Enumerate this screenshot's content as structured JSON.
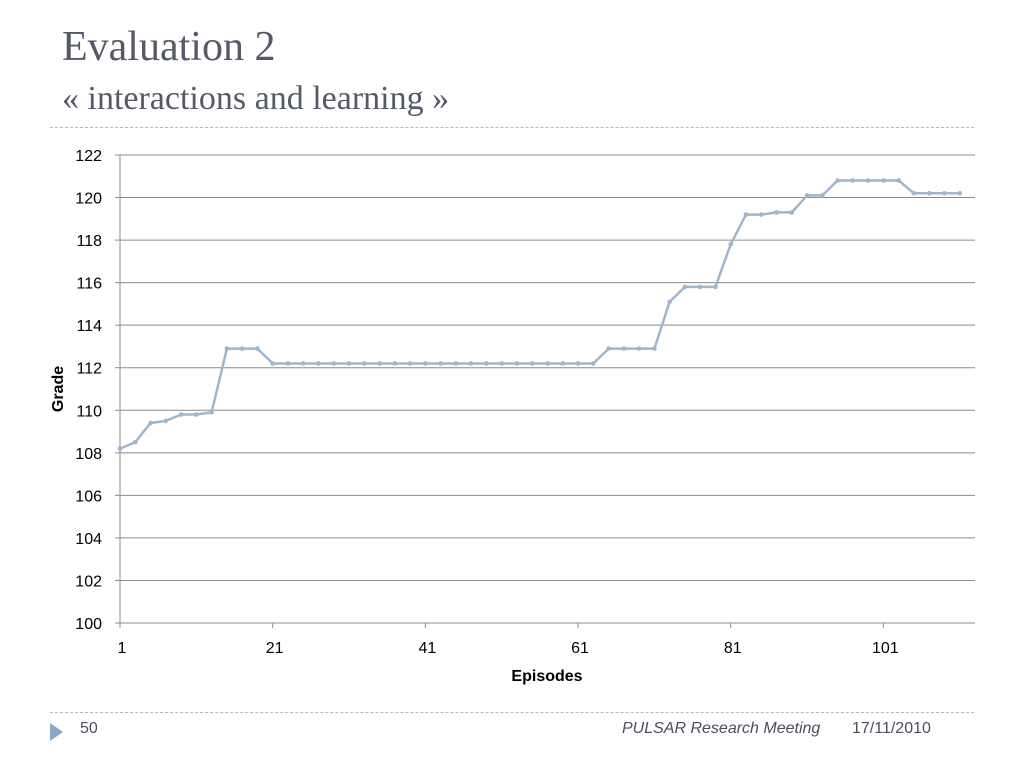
{
  "slide": {
    "title": "Evaluation 2",
    "subtitle": "« interactions and learning »"
  },
  "footer": {
    "page_number": "50",
    "meeting": "PULSAR Research Meeting",
    "date": "17/11/2010"
  },
  "colors": {
    "title": "#555a66",
    "series_line": "#9fb6cc",
    "gridline": "#8c8c8c",
    "divider": "#a9bccb",
    "nav_arrow": "#8aa9c4"
  },
  "icons": {
    "nav": "play-triangle-icon"
  },
  "chart_data": {
    "type": "line",
    "title": "",
    "xlabel": "Episodes",
    "ylabel": "Grade",
    "ylim": [
      100,
      122
    ],
    "yticks": [
      100,
      102,
      104,
      106,
      108,
      110,
      112,
      114,
      116,
      118,
      120,
      122
    ],
    "xtick_labels": [
      "1",
      "21",
      "41",
      "61",
      "81",
      "101"
    ],
    "xtick_values": [
      1,
      21,
      41,
      61,
      81,
      101
    ],
    "xlim": [
      1,
      113
    ],
    "grid": true,
    "legend": "none",
    "series": [
      {
        "x": [
          1,
          3,
          5,
          7,
          9,
          11,
          13,
          15,
          17,
          19,
          21,
          23,
          25,
          27,
          29,
          31,
          33,
          35,
          37,
          39,
          41,
          43,
          45,
          47,
          49,
          51,
          53,
          55,
          57,
          59,
          61,
          63,
          65,
          67,
          69,
          71,
          73,
          75,
          77,
          79,
          81,
          83,
          85,
          87,
          89,
          91,
          93,
          95,
          97,
          99,
          101,
          103,
          105,
          107,
          109,
          111
        ],
        "y": [
          108.2,
          108.5,
          109.4,
          109.5,
          109.8,
          109.8,
          109.9,
          112.9,
          112.9,
          112.9,
          112.2,
          112.2,
          112.2,
          112.2,
          112.2,
          112.2,
          112.2,
          112.2,
          112.2,
          112.2,
          112.2,
          112.2,
          112.2,
          112.2,
          112.2,
          112.2,
          112.2,
          112.2,
          112.2,
          112.2,
          112.2,
          112.2,
          112.9,
          112.9,
          112.9,
          112.9,
          115.1,
          115.8,
          115.8,
          115.8,
          117.8,
          119.2,
          119.2,
          119.3,
          119.3,
          120.1,
          120.1,
          120.8,
          120.8,
          120.8,
          120.8,
          120.8,
          120.2,
          120.2,
          120.2,
          120.2
        ]
      }
    ]
  }
}
